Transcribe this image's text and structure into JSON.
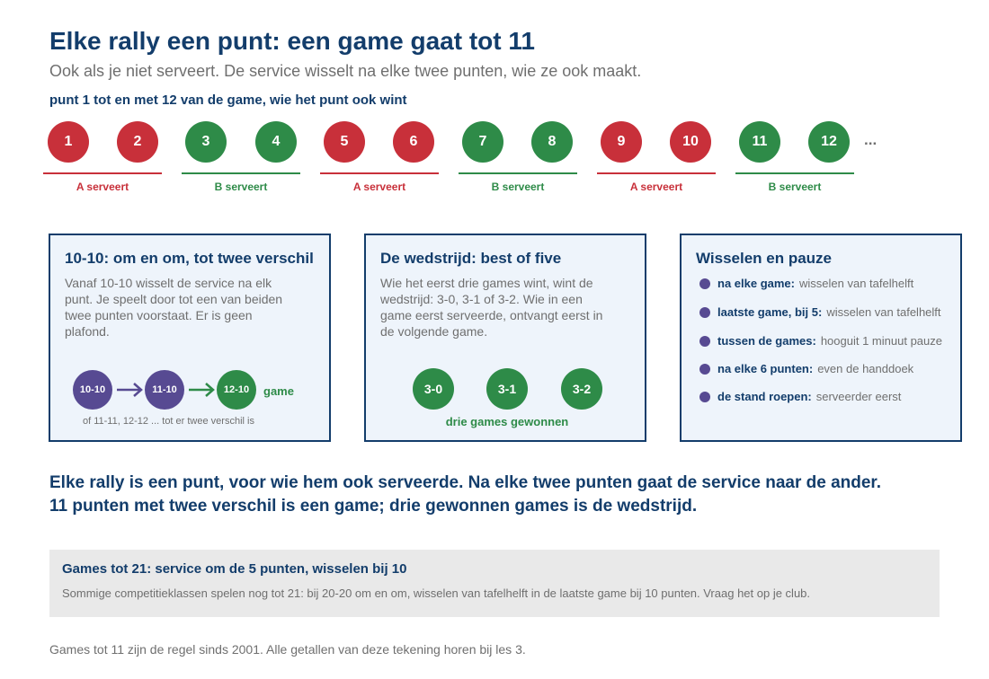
{
  "header": {
    "title": "Elke rally een punt: een game gaat tot 11",
    "subtitle": "Ook als je niet serveert. De service wisselt na elke twee punten, wie ze ook maakt.",
    "kicker": "punt 1 tot en met 12 van de game, wie het punt ook wint"
  },
  "points": [
    "1",
    "2",
    "3",
    "4",
    "5",
    "6",
    "7",
    "8",
    "9",
    "10",
    "11",
    "12"
  ],
  "points_ellipsis": "...",
  "serve_groups": [
    {
      "label": "A serveert",
      "color": "#c8303a"
    },
    {
      "label": "B serveert",
      "color": "#2e8b48"
    },
    {
      "label": "A serveert",
      "color": "#c8303a"
    },
    {
      "label": "B serveert",
      "color": "#2e8b48"
    },
    {
      "label": "A serveert",
      "color": "#c8303a"
    },
    {
      "label": "B serveert",
      "color": "#2e8b48"
    }
  ],
  "cards": {
    "deuce": {
      "title": "10-10: om en om, tot twee verschil",
      "body": "Vanaf 10-10 wisselt de service na elk punt. Je speelt door tot een van beiden twee punten voorstaat. Er is geen plafond.",
      "flow": [
        "10-10",
        "11-10",
        "12-10"
      ],
      "flow_end": "game",
      "note": "of 11-11, 12-12 ... tot er twee verschil is"
    },
    "match": {
      "title": "De wedstrijd: best of five",
      "body": "Wie het eerst drie games wint, wint de wedstrijd: 3-0, 3-1 of 3-2. Wie in een game eerst serveerde, ontvangt eerst in de volgende game.",
      "scores": [
        "3-0",
        "3-1",
        "3-2"
      ],
      "scores_label": "drie games gewonnen"
    },
    "ends": {
      "title": "Wisselen en pauze",
      "rules": [
        {
          "key": "na elke game:",
          "value": "wisselen van tafelhelft"
        },
        {
          "key": "laatste game, bij 5:",
          "value": "wisselen van tafelhelft"
        },
        {
          "key": "tussen de games:",
          "value": "hooguit 1 minuut pauze"
        },
        {
          "key": "na elke 6 punten:",
          "value": "even de handdoek"
        },
        {
          "key": "de stand roepen:",
          "value": "serveerder eerst"
        }
      ]
    }
  },
  "summary": {
    "line1": "Elke rally is een punt, voor wie hem ook serveerde. Na elke twee punten gaat de service naar de ander.",
    "line2": "11 punten met twee verschil is een game; drie gewonnen games is de wedstrijd."
  },
  "note": {
    "title": "Games tot 21: service om de 5 punten, wisselen bij 10",
    "body": "Sommige competitieklassen spelen nog tot 21: bij 20-20 om en om, wisselen van tafelhelft in de laatste game bij 10 punten. Vraag het op je club."
  },
  "footer": "Games tot 11 zijn de regel sinds 2001. Alle getallen van deze tekening horen bij les 3.",
  "colors": {
    "navy": "#133d6b",
    "red": "#c8303a",
    "green": "#2e8b48",
    "purple": "#574a92",
    "grey_text": "#6f6f6f"
  }
}
